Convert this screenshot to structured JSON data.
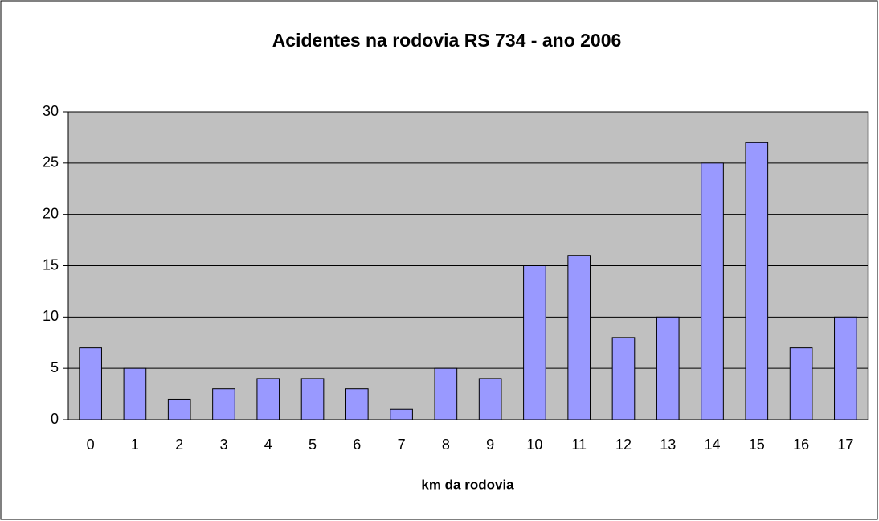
{
  "chart_data": {
    "type": "bar",
    "title": "Acidentes na rodovia RS 734 - ano 2006",
    "x_label": "km da rodovia",
    "categories": [
      "0",
      "1",
      "2",
      "3",
      "4",
      "5",
      "6",
      "7",
      "8",
      "9",
      "10",
      "11",
      "12",
      "13",
      "14",
      "15",
      "16",
      "17"
    ],
    "values": [
      7,
      5,
      2,
      3,
      4,
      4,
      3,
      1,
      5,
      4,
      15,
      16,
      8,
      10,
      25,
      27,
      7,
      10
    ],
    "color": "#9999ff",
    "ylim": [
      0,
      30
    ],
    "yticks": [
      0,
      5,
      10,
      15,
      20,
      25,
      30
    ],
    "grid": true
  }
}
